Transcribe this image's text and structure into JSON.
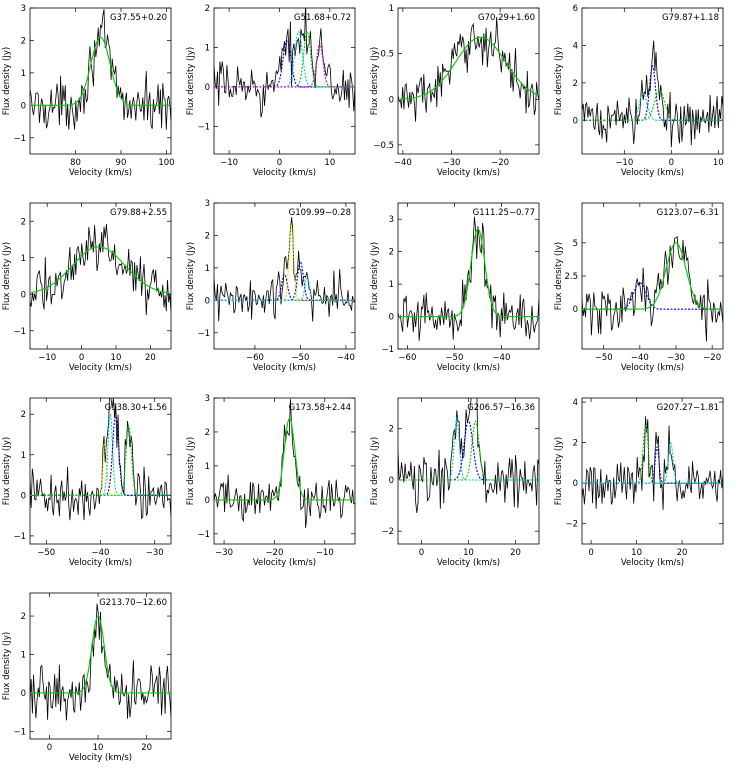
{
  "figure": {
    "xlabel": "Velocity (km/s)",
    "ylabel": "Flux density (Jy)"
  },
  "chart_data": [
    {
      "type": "line",
      "title": "G37.55+0.20",
      "xlim": [
        70,
        101
      ],
      "ylim": [
        -1.5,
        3
      ],
      "xticks": [
        80,
        90,
        100
      ],
      "yticks": [
        -1,
        0,
        1,
        2,
        3
      ],
      "xlabel": "Velocity (km/s)",
      "ylabel": "Flux density (Jy)",
      "components": [
        {
          "amp": 2.1,
          "center": 85.5,
          "fwhm": 5,
          "color": "#00cc00",
          "dash": false
        }
      ]
    },
    {
      "type": "line",
      "title": "G51.68+0.72",
      "xlim": [
        -13,
        15
      ],
      "ylim": [
        -1.7,
        2
      ],
      "xticks": [
        -10,
        0,
        10
      ],
      "yticks": [
        -1,
        0,
        1,
        2
      ],
      "xlabel": "Velocity (km/s)",
      "ylabel": "Flux density (Jy)",
      "components": [
        {
          "amp": 1.2,
          "center": 1.5,
          "fwhm": 1.8,
          "color": "#0000cc",
          "dash": true
        },
        {
          "amp": 1.4,
          "center": 3.8,
          "fwhm": 1.8,
          "color": "#00cccc",
          "dash": true
        },
        {
          "amp": 1.4,
          "center": 5.5,
          "fwhm": 1.6,
          "color": "#00cc00",
          "dash": true
        },
        {
          "amp": 1.1,
          "center": 8,
          "fwhm": 1.5,
          "color": "#cc00cc",
          "dash": true
        }
      ]
    },
    {
      "type": "line",
      "title": "G70.29+1.60",
      "xlim": [
        -41,
        -12
      ],
      "ylim": [
        -0.6,
        1
      ],
      "xticks": [
        -40,
        -30,
        -20
      ],
      "yticks": [
        -0.5,
        0,
        0.5,
        1
      ],
      "xlabel": "Velocity (km/s)",
      "ylabel": "Flux density (Jy)",
      "components": [
        {
          "amp": 0.68,
          "center": -24,
          "fwhm": 12,
          "color": "#00cc00",
          "dash": false
        }
      ]
    },
    {
      "type": "line",
      "title": "G79.87+1.18",
      "xlim": [
        -19,
        11
      ],
      "ylim": [
        -1.8,
        6
      ],
      "xticks": [
        -10,
        0,
        10
      ],
      "yticks": [
        0,
        2,
        4,
        6
      ],
      "xlabel": "Velocity (km/s)",
      "ylabel": "Flux density (Jy)",
      "components": [
        {
          "amp": 1.4,
          "center": -6,
          "fwhm": 2,
          "color": "#00cccc",
          "dash": true
        },
        {
          "amp": 2.9,
          "center": -4,
          "fwhm": 1.5,
          "color": "#0000cc",
          "dash": true
        },
        {
          "amp": 1.6,
          "center": -2.5,
          "fwhm": 2.5,
          "color": "#00cc00",
          "dash": true
        }
      ]
    },
    {
      "type": "line",
      "title": "G79.88+2.55",
      "xlim": [
        -15,
        26
      ],
      "ylim": [
        -1.5,
        2.5
      ],
      "xticks": [
        -10,
        0,
        10,
        20
      ],
      "yticks": [
        -1,
        0,
        1,
        2
      ],
      "xlabel": "Velocity (km/s)",
      "ylabel": "Flux density (Jy)",
      "components": [
        {
          "amp": 1.3,
          "center": 5,
          "fwhm": 18,
          "color": "#00cc00",
          "dash": false
        }
      ]
    },
    {
      "type": "line",
      "title": "G109.99−0.28",
      "xlim": [
        -69,
        -38
      ],
      "ylim": [
        -1.5,
        3
      ],
      "xticks": [
        -60,
        -50,
        -40
      ],
      "yticks": [
        -1,
        0,
        1,
        2,
        3
      ],
      "xlabel": "Velocity (km/s)",
      "ylabel": "Flux density (Jy)",
      "components": [
        {
          "amp": 0.8,
          "center": -53.5,
          "fwhm": 1.5,
          "color": "#0000cc",
          "dash": true
        },
        {
          "amp": 2.3,
          "center": -52,
          "fwhm": 1.2,
          "color": "#dddd00",
          "dash": true
        },
        {
          "amp": 1.2,
          "center": -50,
          "fwhm": 1.5,
          "color": "#0000cc",
          "dash": true
        },
        {
          "amp": 0.7,
          "center": -48.5,
          "fwhm": 1.2,
          "color": "#00cccc",
          "dash": true
        }
      ]
    },
    {
      "type": "line",
      "title": "G111.25−0.77",
      "xlim": [
        -62,
        -32
      ],
      "ylim": [
        -1,
        3.5
      ],
      "xticks": [
        -60,
        -50,
        -40
      ],
      "yticks": [
        -1,
        0,
        1,
        2,
        3
      ],
      "xlabel": "Velocity (km/s)",
      "ylabel": "Flux density (Jy)",
      "components": [
        {
          "amp": 2.7,
          "center": -45,
          "fwhm": 3.5,
          "color": "#00cc00",
          "dash": false
        }
      ]
    },
    {
      "type": "line",
      "title": "G123.07−6.31",
      "xlim": [
        -56,
        -17
      ],
      "ylim": [
        -3,
        8
      ],
      "xticks": [
        -50,
        -40,
        -30,
        -20
      ],
      "yticks": [
        0,
        2.5,
        5
      ],
      "xlabel": "Velocity (km/s)",
      "ylabel": "Flux density (Jy)",
      "components": [
        {
          "amp": 2.0,
          "center": -40,
          "fwhm": 4,
          "color": "#0000cc",
          "dash": true
        },
        {
          "amp": 5.0,
          "center": -30,
          "fwhm": 6.5,
          "color": "#00cc00",
          "dash": false
        }
      ]
    },
    {
      "type": "line",
      "title": "G138.30+1.56",
      "xlim": [
        -53,
        -27
      ],
      "ylim": [
        -1.2,
        2.4
      ],
      "xticks": [
        -50,
        -40,
        -30
      ],
      "yticks": [
        -1,
        0,
        1,
        2
      ],
      "xlabel": "Velocity (km/s)",
      "ylabel": "Flux density (Jy)",
      "components": [
        {
          "amp": 1.3,
          "center": -39.2,
          "fwhm": 0.8,
          "color": "#dddd00",
          "dash": true
        },
        {
          "amp": 2.0,
          "center": -38.2,
          "fwhm": 1.0,
          "color": "#00cccc",
          "dash": true
        },
        {
          "amp": 2.0,
          "center": -37.2,
          "fwhm": 1.3,
          "color": "#0000cc",
          "dash": true
        },
        {
          "amp": 1.7,
          "center": -34.8,
          "fwhm": 1.2,
          "color": "#00cc00",
          "dash": true
        }
      ]
    },
    {
      "type": "line",
      "title": "G173.58+2.44",
      "xlim": [
        -32,
        -4
      ],
      "ylim": [
        -1.3,
        3
      ],
      "xticks": [
        -30,
        -20,
        -10
      ],
      "yticks": [
        -1,
        0,
        1,
        2,
        3
      ],
      "xlabel": "Velocity (km/s)",
      "ylabel": "Flux density (Jy)",
      "components": [
        {
          "amp": 2.4,
          "center": -17,
          "fwhm": 2.5,
          "color": "#00cc00",
          "dash": false
        }
      ]
    },
    {
      "type": "line",
      "title": "G206.57−16.36",
      "xlim": [
        -5,
        25
      ],
      "ylim": [
        -2.5,
        3.2
      ],
      "xticks": [
        0,
        10,
        20
      ],
      "yticks": [
        -2,
        0,
        2
      ],
      "xlabel": "Velocity (km/s)",
      "ylabel": "Flux density (Jy)",
      "components": [
        {
          "amp": 2.4,
          "center": 7.5,
          "fwhm": 1.3,
          "color": "#00cccc",
          "dash": true
        },
        {
          "amp": 2.3,
          "center": 10,
          "fwhm": 2.2,
          "color": "#0000cc",
          "dash": true
        },
        {
          "amp": 2.3,
          "center": 11.5,
          "fwhm": 1.8,
          "color": "#00cc00",
          "dash": true
        }
      ]
    },
    {
      "type": "line",
      "title": "G207.27−1.81",
      "xlim": [
        -2,
        29
      ],
      "ylim": [
        -3,
        4.2
      ],
      "xticks": [
        0,
        10,
        20
      ],
      "yticks": [
        -2,
        0,
        2,
        4
      ],
      "xlabel": "Velocity (km/s)",
      "ylabel": "Flux density (Jy)",
      "components": [
        {
          "amp": 2.9,
          "center": 12,
          "fwhm": 1.3,
          "color": "#00cc00",
          "dash": true
        },
        {
          "amp": 1.8,
          "center": 14.5,
          "fwhm": 1.0,
          "color": "#0000cc",
          "dash": true
        },
        {
          "amp": 2.0,
          "center": 17.5,
          "fwhm": 1.2,
          "color": "#00cccc",
          "dash": true
        }
      ]
    },
    {
      "type": "line",
      "title": "G213.70−12.60",
      "xlim": [
        -4,
        25
      ],
      "ylim": [
        -1.2,
        2.6
      ],
      "xticks": [
        0,
        10,
        20
      ],
      "yticks": [
        -1,
        0,
        1,
        2
      ],
      "xlabel": "Velocity (km/s)",
      "ylabel": "Flux density (Jy)",
      "components": [
        {
          "amp": 2.0,
          "center": 10,
          "fwhm": 3,
          "color": "#00cc00",
          "dash": false
        }
      ]
    }
  ]
}
